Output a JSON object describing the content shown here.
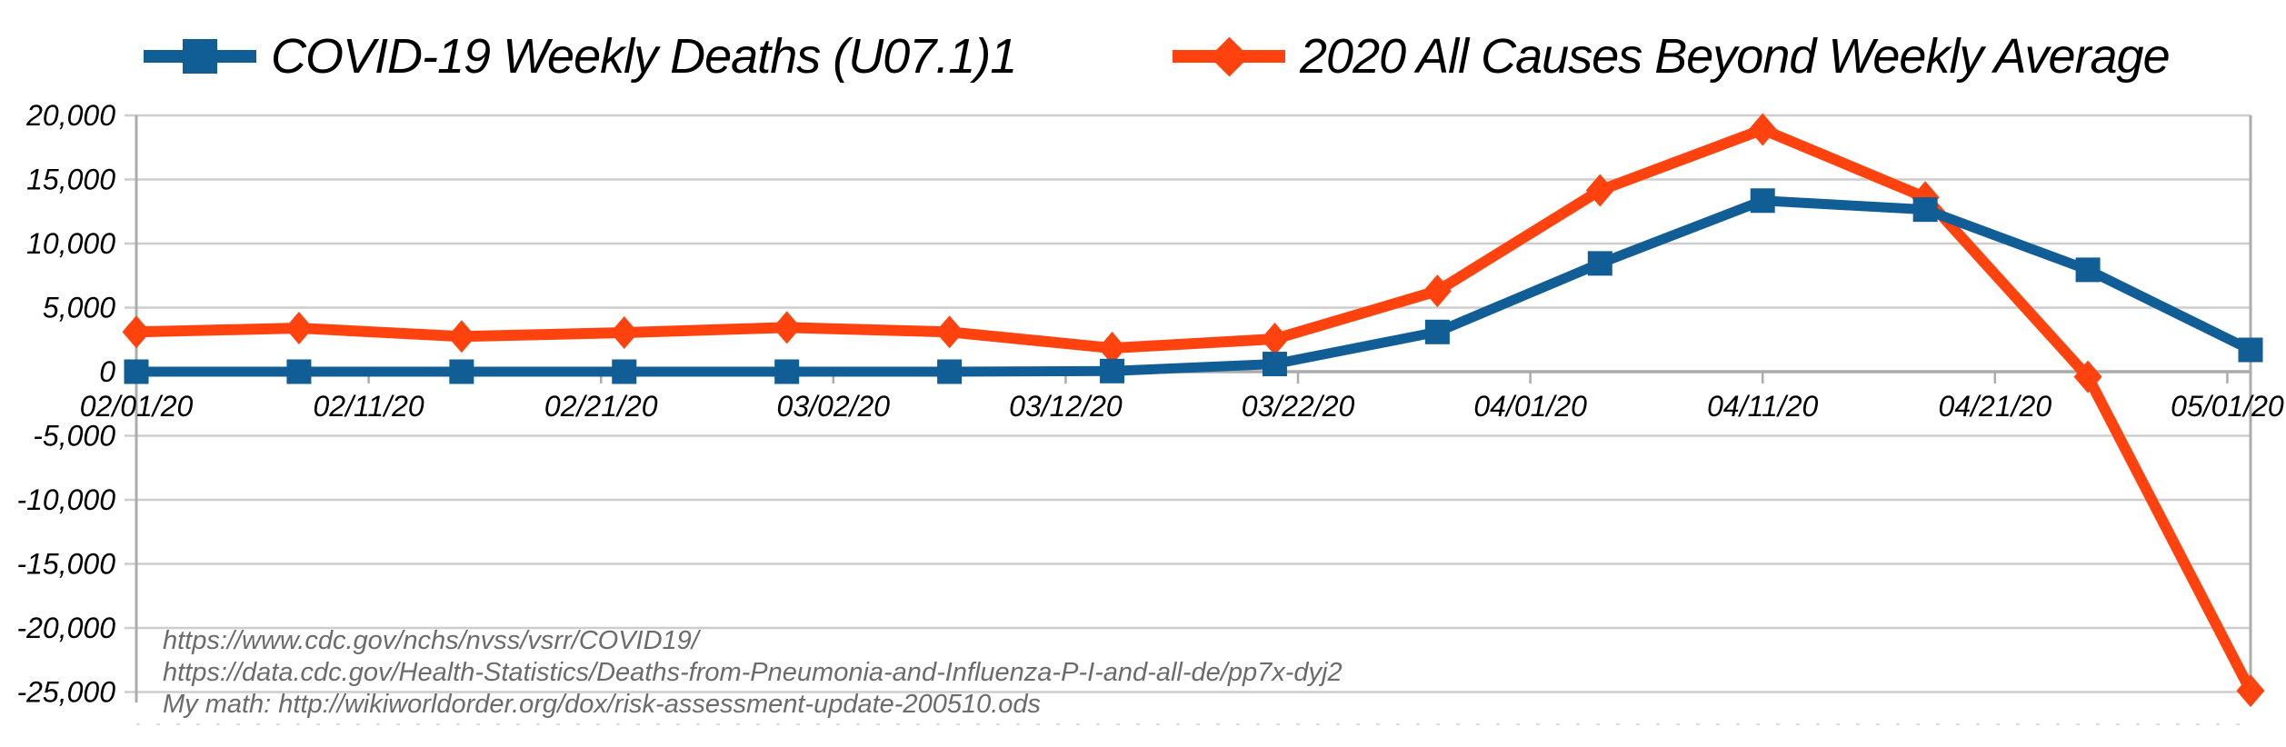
{
  "legend": {
    "position": "top"
  },
  "footer": {
    "lines": [
      "https://www.cdc.gov/nchs/nvss/vsrr/COVID19/",
      "https://data.cdc.gov/Health-Statistics/Deaths-from-Pneumonia-and-Influenza-P-I-and-all-de/pp7x-dyj2",
      "My math: http://wikiworldorder.org/dox/risk-assessment-update-200510.ods"
    ],
    "text_color": "#6B6B6B"
  },
  "chart_data": {
    "type": "line",
    "title": "",
    "xlabel": "",
    "ylabel": "",
    "categories": [
      "02/01/20",
      "02/08/20",
      "02/15/20",
      "02/22/20",
      "02/29/20",
      "03/07/20",
      "03/14/20",
      "03/21/20",
      "03/28/20",
      "04/04/20",
      "04/11/20",
      "04/18/20",
      "04/25/20",
      "05/02/20"
    ],
    "series": [
      {
        "name": "COVID-19 Weekly Deaths (U07.1)1",
        "color": "#115E97",
        "marker": "square",
        "values": [
          0,
          0,
          0,
          0,
          0,
          0,
          50,
          600,
          3100,
          8450,
          13350,
          12650,
          7950,
          1700
        ]
      },
      {
        "name": "2020 All Causes Beyond Weekly Average",
        "color": "#FF420E",
        "marker": "diamond",
        "values": [
          3100,
          3400,
          2750,
          3050,
          3450,
          3100,
          1840,
          2550,
          6300,
          14150,
          18900,
          13600,
          -400,
          -24900
        ]
      }
    ],
    "x_tick_labels": [
      "02/01/20",
      "02/11/20",
      "02/21/20",
      "03/02/20",
      "03/12/20",
      "03/22/20",
      "04/01/20",
      "04/11/20",
      "04/21/20",
      "05/01/20"
    ],
    "y_tick_labels": [
      "20,000",
      "15,000",
      "10,000",
      "5,000",
      "0",
      "-5,000",
      "-10,000",
      "-15,000",
      "-20,000",
      "-25,000"
    ],
    "ylim": [
      -25000,
      20000
    ],
    "y_step": 5000,
    "x_span_days": 91,
    "point_interval_days": 7,
    "tick_interval_days": 10,
    "grid": true,
    "legend_position": "top",
    "colors": {
      "grid": "#CDCDCD",
      "axis": "#ACACAC",
      "background": "#FFFFFF"
    }
  }
}
